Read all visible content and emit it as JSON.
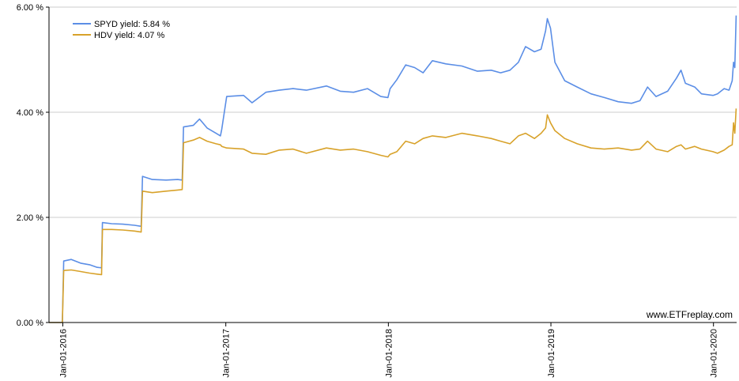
{
  "chart_data": {
    "type": "line",
    "title": "",
    "xlabel": "",
    "ylabel": "",
    "ylim": [
      0,
      6
    ],
    "xlim": [
      "2015-12-01",
      "2020-02-22"
    ],
    "y_ticks": [
      "0.00 %",
      "2.00 %",
      "4.00 %",
      "6.00 %"
    ],
    "x_ticks": [
      {
        "date": "2016-01-01",
        "label": "Jan-01-2016"
      },
      {
        "date": "2017-01-01",
        "label": "Jan-01-2017"
      },
      {
        "date": "2018-01-01",
        "label": "Jan-01-2018"
      },
      {
        "date": "2019-01-01",
        "label": "Jan-01-2019"
      },
      {
        "date": "2020-01-01",
        "label": "Jan-01-2020"
      }
    ],
    "grid": "horizontal",
    "legend_position": "top-left",
    "series": [
      {
        "name": "SPYD yield: 5.84 %",
        "color": "#5b8ee6",
        "points": [
          [
            "2015-12-01",
            0.0
          ],
          [
            "2015-12-31",
            0.0
          ],
          [
            "2016-01-03",
            1.17
          ],
          [
            "2016-01-20",
            1.2
          ],
          [
            "2016-02-10",
            1.13
          ],
          [
            "2016-03-01",
            1.1
          ],
          [
            "2016-03-18",
            1.05
          ],
          [
            "2016-03-28",
            1.04
          ],
          [
            "2016-03-30",
            1.9
          ],
          [
            "2016-04-20",
            1.88
          ],
          [
            "2016-05-15",
            1.87
          ],
          [
            "2016-06-10",
            1.85
          ],
          [
            "2016-06-25",
            1.83
          ],
          [
            "2016-06-28",
            2.78
          ],
          [
            "2016-07-20",
            2.72
          ],
          [
            "2016-08-20",
            2.71
          ],
          [
            "2016-09-15",
            2.72
          ],
          [
            "2016-09-25",
            2.71
          ],
          [
            "2016-09-28",
            3.72
          ],
          [
            "2016-10-20",
            3.75
          ],
          [
            "2016-11-03",
            3.87
          ],
          [
            "2016-11-20",
            3.7
          ],
          [
            "2016-12-10",
            3.6
          ],
          [
            "2016-12-20",
            3.55
          ],
          [
            "2016-12-23",
            3.68
          ],
          [
            "2017-01-03",
            4.3
          ],
          [
            "2017-02-10",
            4.32
          ],
          [
            "2017-03-01",
            4.18
          ],
          [
            "2017-04-01",
            4.38
          ],
          [
            "2017-05-01",
            4.42
          ],
          [
            "2017-06-01",
            4.45
          ],
          [
            "2017-07-01",
            4.42
          ],
          [
            "2017-08-15",
            4.5
          ],
          [
            "2017-09-15",
            4.4
          ],
          [
            "2017-10-15",
            4.38
          ],
          [
            "2017-11-15",
            4.45
          ],
          [
            "2017-12-15",
            4.3
          ],
          [
            "2017-12-31",
            4.28
          ],
          [
            "2018-01-05",
            4.45
          ],
          [
            "2018-01-20",
            4.62
          ],
          [
            "2018-02-09",
            4.9
          ],
          [
            "2018-03-01",
            4.85
          ],
          [
            "2018-03-20",
            4.75
          ],
          [
            "2018-04-10",
            4.98
          ],
          [
            "2018-05-10",
            4.92
          ],
          [
            "2018-06-15",
            4.88
          ],
          [
            "2018-07-20",
            4.78
          ],
          [
            "2018-08-20",
            4.8
          ],
          [
            "2018-09-10",
            4.75
          ],
          [
            "2018-10-01",
            4.8
          ],
          [
            "2018-10-20",
            4.95
          ],
          [
            "2018-11-05",
            5.25
          ],
          [
            "2018-11-25",
            5.15
          ],
          [
            "2018-12-10",
            5.2
          ],
          [
            "2018-12-20",
            5.55
          ],
          [
            "2018-12-24",
            5.78
          ],
          [
            "2018-12-31",
            5.6
          ],
          [
            "2019-01-10",
            4.95
          ],
          [
            "2019-02-01",
            4.6
          ],
          [
            "2019-03-01",
            4.48
          ],
          [
            "2019-04-01",
            4.35
          ],
          [
            "2019-05-01",
            4.28
          ],
          [
            "2019-06-01",
            4.2
          ],
          [
            "2019-07-01",
            4.17
          ],
          [
            "2019-07-20",
            4.22
          ],
          [
            "2019-08-06",
            4.48
          ],
          [
            "2019-08-25",
            4.3
          ],
          [
            "2019-09-20",
            4.4
          ],
          [
            "2019-10-10",
            4.65
          ],
          [
            "2019-10-20",
            4.8
          ],
          [
            "2019-10-30",
            4.55
          ],
          [
            "2019-11-20",
            4.48
          ],
          [
            "2019-12-05",
            4.35
          ],
          [
            "2019-12-31",
            4.32
          ],
          [
            "2020-01-10",
            4.35
          ],
          [
            "2020-01-25",
            4.45
          ],
          [
            "2020-02-05",
            4.42
          ],
          [
            "2020-02-12",
            4.6
          ],
          [
            "2020-02-15",
            4.95
          ],
          [
            "2020-02-18",
            4.85
          ],
          [
            "2020-02-21",
            5.84
          ]
        ]
      },
      {
        "name": "HDV yield: 4.07 %",
        "color": "#d8a22a",
        "points": [
          [
            "2015-12-01",
            0.0
          ],
          [
            "2015-12-31",
            0.0
          ],
          [
            "2016-01-03",
            0.99
          ],
          [
            "2016-01-20",
            1.0
          ],
          [
            "2016-02-10",
            0.97
          ],
          [
            "2016-03-01",
            0.94
          ],
          [
            "2016-03-18",
            0.92
          ],
          [
            "2016-03-28",
            0.91
          ],
          [
            "2016-03-30",
            1.77
          ],
          [
            "2016-04-20",
            1.77
          ],
          [
            "2016-05-15",
            1.76
          ],
          [
            "2016-06-10",
            1.74
          ],
          [
            "2016-06-25",
            1.72
          ],
          [
            "2016-06-28",
            2.5
          ],
          [
            "2016-07-20",
            2.47
          ],
          [
            "2016-08-20",
            2.5
          ],
          [
            "2016-09-15",
            2.52
          ],
          [
            "2016-09-25",
            2.53
          ],
          [
            "2016-09-28",
            3.42
          ],
          [
            "2016-10-20",
            3.47
          ],
          [
            "2016-11-03",
            3.52
          ],
          [
            "2016-11-20",
            3.45
          ],
          [
            "2016-12-10",
            3.4
          ],
          [
            "2016-12-20",
            3.38
          ],
          [
            "2016-12-23",
            3.35
          ],
          [
            "2017-01-03",
            3.32
          ],
          [
            "2017-02-10",
            3.3
          ],
          [
            "2017-03-01",
            3.22
          ],
          [
            "2017-04-01",
            3.2
          ],
          [
            "2017-05-01",
            3.28
          ],
          [
            "2017-06-01",
            3.3
          ],
          [
            "2017-07-01",
            3.22
          ],
          [
            "2017-08-15",
            3.32
          ],
          [
            "2017-09-15",
            3.28
          ],
          [
            "2017-10-15",
            3.3
          ],
          [
            "2017-11-15",
            3.25
          ],
          [
            "2017-12-15",
            3.18
          ],
          [
            "2017-12-31",
            3.15
          ],
          [
            "2018-01-05",
            3.2
          ],
          [
            "2018-01-20",
            3.25
          ],
          [
            "2018-02-09",
            3.45
          ],
          [
            "2018-03-01",
            3.4
          ],
          [
            "2018-03-20",
            3.5
          ],
          [
            "2018-04-10",
            3.55
          ],
          [
            "2018-05-10",
            3.52
          ],
          [
            "2018-06-15",
            3.6
          ],
          [
            "2018-07-20",
            3.55
          ],
          [
            "2018-08-20",
            3.5
          ],
          [
            "2018-09-10",
            3.45
          ],
          [
            "2018-10-01",
            3.4
          ],
          [
            "2018-10-20",
            3.55
          ],
          [
            "2018-11-05",
            3.6
          ],
          [
            "2018-11-25",
            3.5
          ],
          [
            "2018-12-10",
            3.6
          ],
          [
            "2018-12-20",
            3.7
          ],
          [
            "2018-12-24",
            3.95
          ],
          [
            "2018-12-31",
            3.8
          ],
          [
            "2019-01-10",
            3.65
          ],
          [
            "2019-02-01",
            3.5
          ],
          [
            "2019-03-01",
            3.4
          ],
          [
            "2019-04-01",
            3.32
          ],
          [
            "2019-05-01",
            3.3
          ],
          [
            "2019-06-01",
            3.32
          ],
          [
            "2019-07-01",
            3.28
          ],
          [
            "2019-07-20",
            3.3
          ],
          [
            "2019-08-06",
            3.45
          ],
          [
            "2019-08-25",
            3.3
          ],
          [
            "2019-09-20",
            3.25
          ],
          [
            "2019-10-10",
            3.35
          ],
          [
            "2019-10-20",
            3.38
          ],
          [
            "2019-10-30",
            3.3
          ],
          [
            "2019-11-20",
            3.35
          ],
          [
            "2019-12-05",
            3.3
          ],
          [
            "2019-12-31",
            3.25
          ],
          [
            "2020-01-10",
            3.22
          ],
          [
            "2020-01-25",
            3.28
          ],
          [
            "2020-02-05",
            3.35
          ],
          [
            "2020-02-12",
            3.38
          ],
          [
            "2020-02-15",
            3.8
          ],
          [
            "2020-02-18",
            3.6
          ],
          [
            "2020-02-21",
            4.07
          ]
        ]
      }
    ],
    "watermark": "www.ETFreplay.com"
  }
}
